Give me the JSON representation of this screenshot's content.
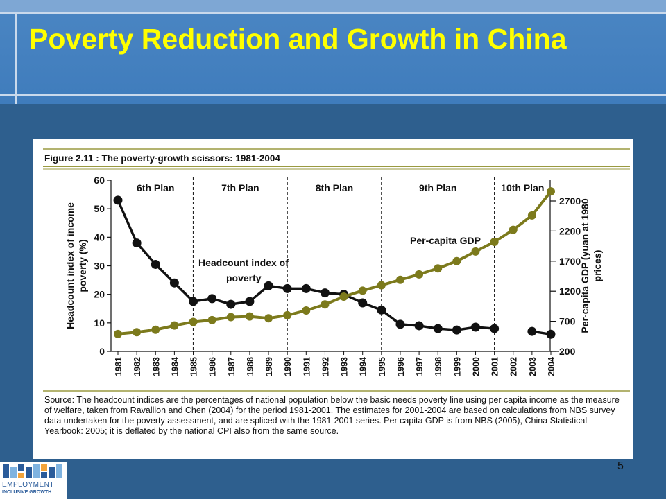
{
  "slide": {
    "title": "Poverty Reduction and Growth in China",
    "page_number": "5",
    "logo": {
      "line1": "EMPLOYMENT",
      "line2": "INCLUSIVE GROWTH",
      "colors": [
        "#2a5b9a",
        "#f2a33a",
        "#7fb3e0"
      ]
    }
  },
  "chart_data": {
    "type": "line",
    "figure_title": "Figure 2.11 : The poverty-growth scissors: 1981-2004",
    "x": [
      1981,
      1982,
      1983,
      1984,
      1985,
      1986,
      1987,
      1988,
      1989,
      1990,
      1991,
      1992,
      1993,
      1994,
      1995,
      1996,
      1997,
      1998,
      1999,
      2000,
      2001,
      2002,
      2003,
      2004
    ],
    "x_tick_labels": [
      "1981",
      "1982",
      "1983",
      "1984",
      "1985",
      "1986",
      "1987",
      "1988",
      "1989",
      "1990",
      "1991",
      "1992",
      "1993",
      "1994",
      "1995",
      "1996",
      "1997",
      "1998",
      "1999",
      "2000",
      "2001",
      "2002",
      "2003",
      "2004"
    ],
    "y_left": {
      "label": "Headcount index of income poverty (%)",
      "range": [
        0,
        60
      ],
      "ticks": [
        0,
        10,
        20,
        30,
        40,
        50,
        60
      ]
    },
    "y_right": {
      "label": "Per-capita GDP (yuan at 1980 prices)",
      "range": [
        200,
        2900
      ],
      "ticks": [
        200,
        700,
        1200,
        1700,
        2200,
        2700
      ]
    },
    "series": [
      {
        "name": "Headcount index of poverty",
        "axis": "left",
        "color": "#111111",
        "values": [
          53,
          38,
          30.5,
          24,
          17.5,
          18.5,
          16.5,
          17.5,
          23,
          22,
          22,
          20.5,
          20,
          17,
          14.5,
          9.5,
          9,
          8,
          7.5,
          8.5,
          8,
          null,
          7,
          6
        ]
      },
      {
        "name": "Per-capita GDP",
        "axis": "right",
        "color": "#7c7a1c",
        "values": [
          490,
          520,
          560,
          630,
          690,
          720,
          770,
          780,
          750,
          800,
          880,
          980,
          1110,
          1210,
          1300,
          1390,
          1480,
          1580,
          1700,
          1860,
          2020,
          2220,
          2460,
          2860
        ]
      }
    ],
    "plan_periods": [
      {
        "label": "6th Plan",
        "start": 1981,
        "end": 1985
      },
      {
        "label": "7th Plan",
        "start": 1985,
        "end": 1990
      },
      {
        "label": "8th Plan",
        "start": 1990,
        "end": 1995
      },
      {
        "label": "9th Plan",
        "start": 1995,
        "end": 2001
      },
      {
        "label": "10th Plan",
        "start": 2001,
        "end": 2004
      }
    ],
    "annotations": {
      "headcount_label_line1": "Headcount index of",
      "headcount_label_line2": "poverty",
      "gdp_label": "Per-capita GDP"
    },
    "source_note": "Source: The headcount indices are the percentages of national population below the basic needs poverty line using per capita income as the measure of welfare, taken from Ravallion and Chen (2004) for the period 1981-2001.  The estimates for 2001-2004 are based on calculations from NBS survey data undertaken for the poverty assessment, and are spliced with the 1981-2001 series. Per capita GDP is from NBS (2005), China Statistical Yearbook: 2005; it is deflated by the national CPI also from the same source."
  }
}
